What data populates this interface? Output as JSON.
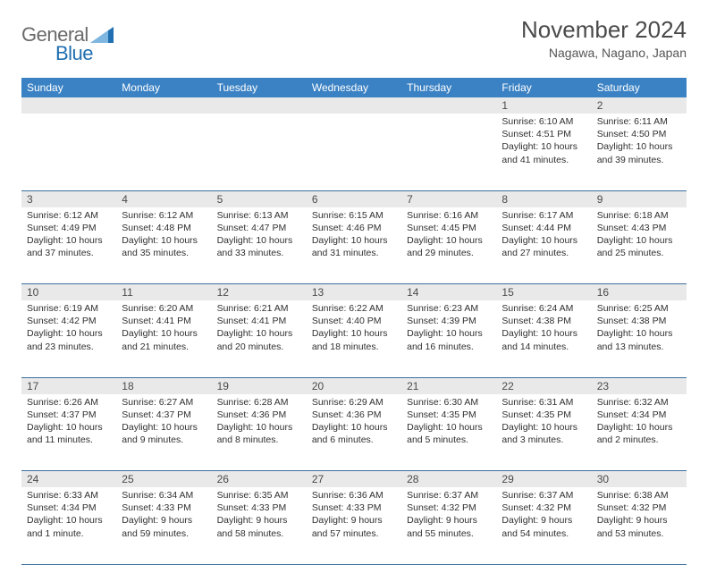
{
  "brand": {
    "left": "General",
    "right": "Blue"
  },
  "title": "November 2024",
  "location": "Nagawa, Nagano, Japan",
  "colors": {
    "header_bg": "#3b82c4",
    "header_text": "#ffffff",
    "daynum_bg": "#e9e9e9",
    "row_border": "#3b6fa0",
    "body_text": "#303030",
    "logo_gray": "#6a6a6a",
    "logo_blue": "#1f6fb2"
  },
  "weekdays": [
    "Sunday",
    "Monday",
    "Tuesday",
    "Wednesday",
    "Thursday",
    "Friday",
    "Saturday"
  ],
  "weeks": [
    [
      null,
      null,
      null,
      null,
      null,
      {
        "n": "1",
        "sr": "Sunrise: 6:10 AM",
        "ss": "Sunset: 4:51 PM",
        "dl": "Daylight: 10 hours and 41 minutes."
      },
      {
        "n": "2",
        "sr": "Sunrise: 6:11 AM",
        "ss": "Sunset: 4:50 PM",
        "dl": "Daylight: 10 hours and 39 minutes."
      }
    ],
    [
      {
        "n": "3",
        "sr": "Sunrise: 6:12 AM",
        "ss": "Sunset: 4:49 PM",
        "dl": "Daylight: 10 hours and 37 minutes."
      },
      {
        "n": "4",
        "sr": "Sunrise: 6:12 AM",
        "ss": "Sunset: 4:48 PM",
        "dl": "Daylight: 10 hours and 35 minutes."
      },
      {
        "n": "5",
        "sr": "Sunrise: 6:13 AM",
        "ss": "Sunset: 4:47 PM",
        "dl": "Daylight: 10 hours and 33 minutes."
      },
      {
        "n": "6",
        "sr": "Sunrise: 6:15 AM",
        "ss": "Sunset: 4:46 PM",
        "dl": "Daylight: 10 hours and 31 minutes."
      },
      {
        "n": "7",
        "sr": "Sunrise: 6:16 AM",
        "ss": "Sunset: 4:45 PM",
        "dl": "Daylight: 10 hours and 29 minutes."
      },
      {
        "n": "8",
        "sr": "Sunrise: 6:17 AM",
        "ss": "Sunset: 4:44 PM",
        "dl": "Daylight: 10 hours and 27 minutes."
      },
      {
        "n": "9",
        "sr": "Sunrise: 6:18 AM",
        "ss": "Sunset: 4:43 PM",
        "dl": "Daylight: 10 hours and 25 minutes."
      }
    ],
    [
      {
        "n": "10",
        "sr": "Sunrise: 6:19 AM",
        "ss": "Sunset: 4:42 PM",
        "dl": "Daylight: 10 hours and 23 minutes."
      },
      {
        "n": "11",
        "sr": "Sunrise: 6:20 AM",
        "ss": "Sunset: 4:41 PM",
        "dl": "Daylight: 10 hours and 21 minutes."
      },
      {
        "n": "12",
        "sr": "Sunrise: 6:21 AM",
        "ss": "Sunset: 4:41 PM",
        "dl": "Daylight: 10 hours and 20 minutes."
      },
      {
        "n": "13",
        "sr": "Sunrise: 6:22 AM",
        "ss": "Sunset: 4:40 PM",
        "dl": "Daylight: 10 hours and 18 minutes."
      },
      {
        "n": "14",
        "sr": "Sunrise: 6:23 AM",
        "ss": "Sunset: 4:39 PM",
        "dl": "Daylight: 10 hours and 16 minutes."
      },
      {
        "n": "15",
        "sr": "Sunrise: 6:24 AM",
        "ss": "Sunset: 4:38 PM",
        "dl": "Daylight: 10 hours and 14 minutes."
      },
      {
        "n": "16",
        "sr": "Sunrise: 6:25 AM",
        "ss": "Sunset: 4:38 PM",
        "dl": "Daylight: 10 hours and 13 minutes."
      }
    ],
    [
      {
        "n": "17",
        "sr": "Sunrise: 6:26 AM",
        "ss": "Sunset: 4:37 PM",
        "dl": "Daylight: 10 hours and 11 minutes."
      },
      {
        "n": "18",
        "sr": "Sunrise: 6:27 AM",
        "ss": "Sunset: 4:37 PM",
        "dl": "Daylight: 10 hours and 9 minutes."
      },
      {
        "n": "19",
        "sr": "Sunrise: 6:28 AM",
        "ss": "Sunset: 4:36 PM",
        "dl": "Daylight: 10 hours and 8 minutes."
      },
      {
        "n": "20",
        "sr": "Sunrise: 6:29 AM",
        "ss": "Sunset: 4:36 PM",
        "dl": "Daylight: 10 hours and 6 minutes."
      },
      {
        "n": "21",
        "sr": "Sunrise: 6:30 AM",
        "ss": "Sunset: 4:35 PM",
        "dl": "Daylight: 10 hours and 5 minutes."
      },
      {
        "n": "22",
        "sr": "Sunrise: 6:31 AM",
        "ss": "Sunset: 4:35 PM",
        "dl": "Daylight: 10 hours and 3 minutes."
      },
      {
        "n": "23",
        "sr": "Sunrise: 6:32 AM",
        "ss": "Sunset: 4:34 PM",
        "dl": "Daylight: 10 hours and 2 minutes."
      }
    ],
    [
      {
        "n": "24",
        "sr": "Sunrise: 6:33 AM",
        "ss": "Sunset: 4:34 PM",
        "dl": "Daylight: 10 hours and 1 minute."
      },
      {
        "n": "25",
        "sr": "Sunrise: 6:34 AM",
        "ss": "Sunset: 4:33 PM",
        "dl": "Daylight: 9 hours and 59 minutes."
      },
      {
        "n": "26",
        "sr": "Sunrise: 6:35 AM",
        "ss": "Sunset: 4:33 PM",
        "dl": "Daylight: 9 hours and 58 minutes."
      },
      {
        "n": "27",
        "sr": "Sunrise: 6:36 AM",
        "ss": "Sunset: 4:33 PM",
        "dl": "Daylight: 9 hours and 57 minutes."
      },
      {
        "n": "28",
        "sr": "Sunrise: 6:37 AM",
        "ss": "Sunset: 4:32 PM",
        "dl": "Daylight: 9 hours and 55 minutes."
      },
      {
        "n": "29",
        "sr": "Sunrise: 6:37 AM",
        "ss": "Sunset: 4:32 PM",
        "dl": "Daylight: 9 hours and 54 minutes."
      },
      {
        "n": "30",
        "sr": "Sunrise: 6:38 AM",
        "ss": "Sunset: 4:32 PM",
        "dl": "Daylight: 9 hours and 53 minutes."
      }
    ]
  ]
}
